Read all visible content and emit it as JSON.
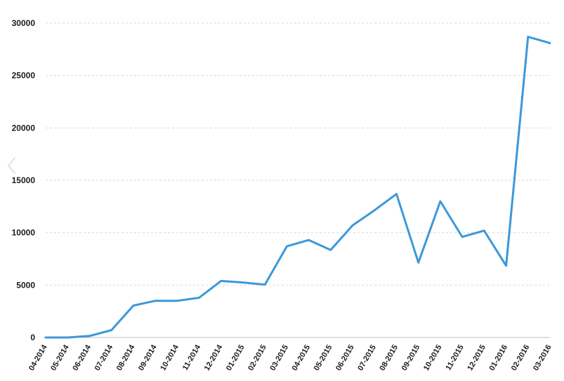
{
  "chart_data": {
    "type": "line",
    "title": "",
    "xlabel": "",
    "ylabel": "",
    "ylim": [
      0,
      30000
    ],
    "y_ticks": [
      "0",
      "5000",
      "10000",
      "15000",
      "20000",
      "25000",
      "30000"
    ],
    "grid": true,
    "legend": "none",
    "categories": [
      "04-2014",
      "05-2014",
      "06-2014",
      "07-2014",
      "08-2014",
      "09-2014",
      "10-2014",
      "11-2014",
      "12-2014",
      "01-2015",
      "02-2015",
      "03-2015",
      "04-2015",
      "05-2015",
      "06-2015",
      "07-2015",
      "08-2015",
      "09-2015",
      "10-2015",
      "11-2015",
      "12-2015",
      "01-2016",
      "02-2016",
      "03-2016"
    ],
    "series": [
      {
        "color": "#3a99d8",
        "values": [
          0,
          0,
          150,
          700,
          3050,
          3500,
          3500,
          3800,
          5400,
          5250,
          5050,
          8700,
          9300,
          8350,
          10700,
          12150,
          13700,
          7150,
          13000,
          9600,
          10200,
          6850,
          28700,
          28100
        ]
      }
    ]
  },
  "nav": {
    "prev_icon": "chevron-left-icon",
    "prev_glyph": "‹"
  }
}
